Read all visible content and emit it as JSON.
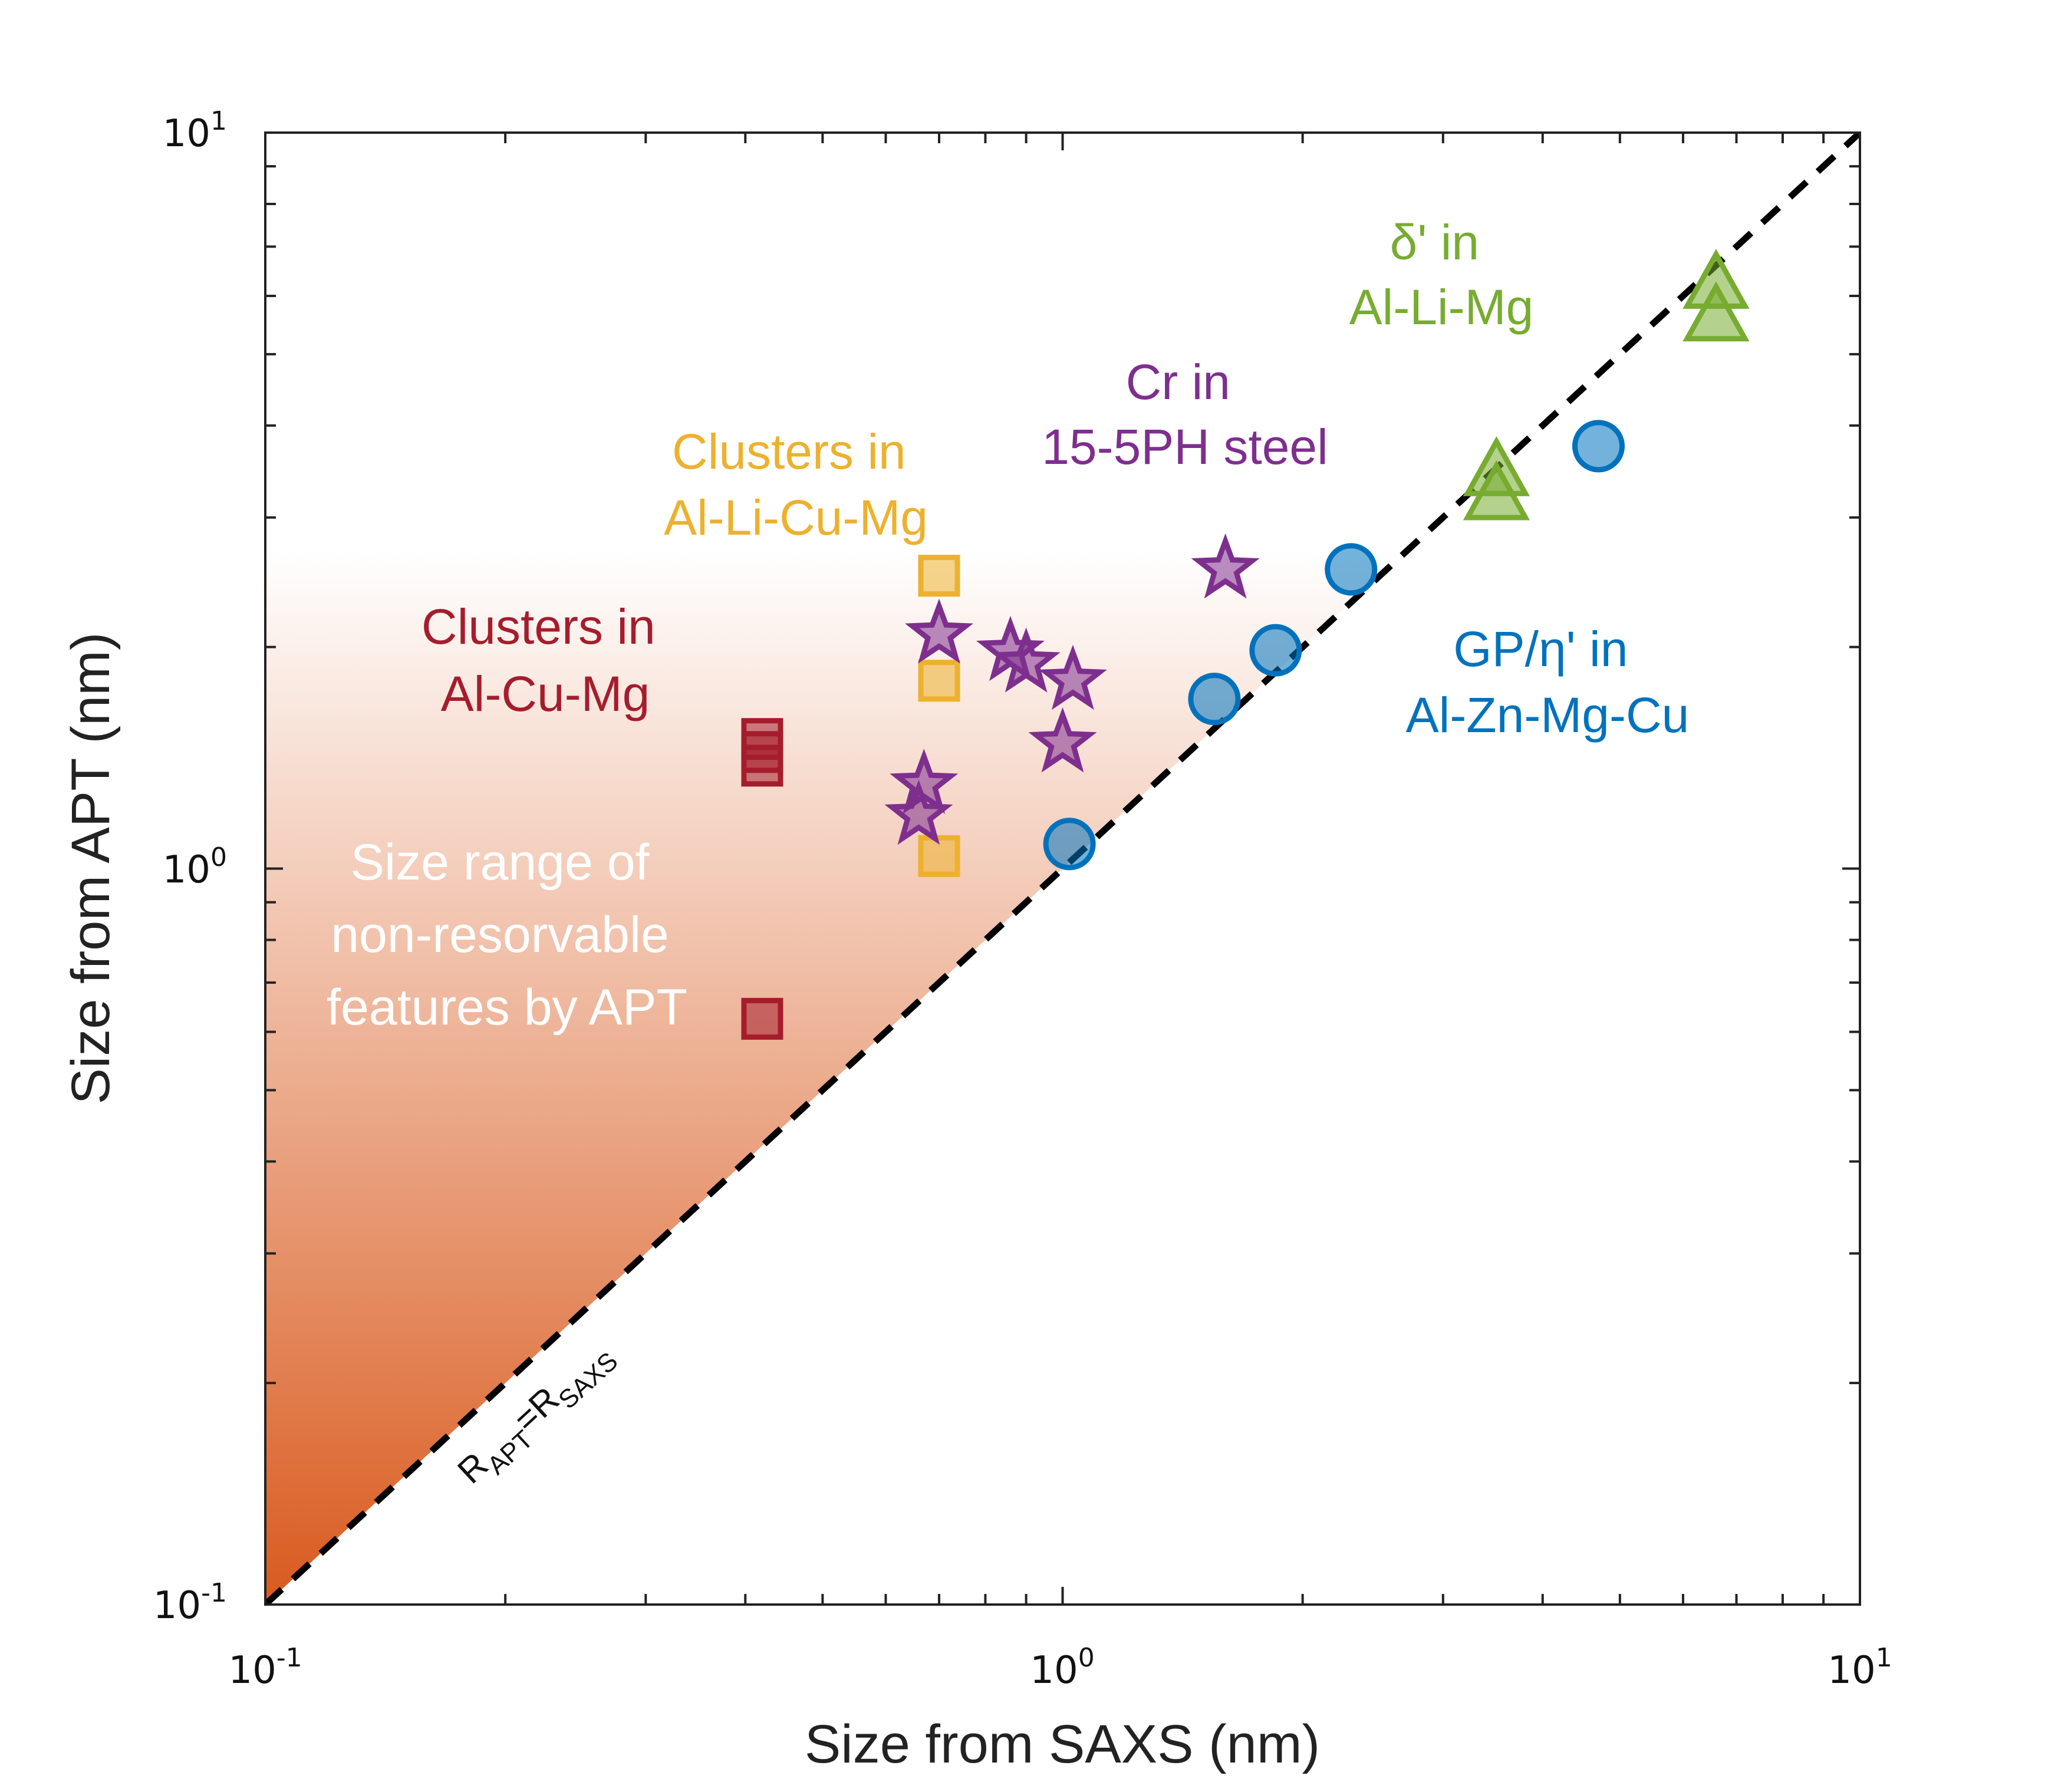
{
  "chart_data": {
    "type": "scatter",
    "xscale": "log",
    "yscale": "log",
    "xlim": [
      0.1,
      10
    ],
    "ylim": [
      0.1,
      10
    ],
    "xlabel": "Size from SAXS (nm)",
    "ylabel": "Size from APT (nm)",
    "x_ticks": [
      {
        "base": "10",
        "exp": "-1"
      },
      {
        "base": "10",
        "exp": "0"
      },
      {
        "base": "10",
        "exp": "1"
      }
    ],
    "y_ticks": [
      {
        "base": "10",
        "exp": "-1"
      },
      {
        "base": "10",
        "exp": "0"
      },
      {
        "base": "10",
        "exp": "1"
      }
    ],
    "reference_line": {
      "label_main_1": "R",
      "label_sub_1": "APT",
      "label_mid": "=R",
      "label_sub_2": "SAXS"
    },
    "shaded_region": {
      "text": [
        "Size range of",
        "non-resorvable",
        "features by APT"
      ],
      "color_bottom": "#d95a1e",
      "color_top": "#ffffff",
      "y_top": 2.7
    },
    "series": [
      {
        "name": "Clusters in Al-Cu-Mg",
        "label_lines": [
          "Clusters in",
          "Al-Cu-Mg"
        ],
        "marker": "square",
        "color": "#a51d2d",
        "points": [
          [
            0.42,
            1.38
          ],
          [
            0.42,
            1.44
          ],
          [
            0.42,
            1.5
          ],
          [
            0.42,
            0.625
          ]
        ]
      },
      {
        "name": "Clusters in Al-Li-Cu-Mg",
        "label_lines": [
          "Clusters in",
          "Al-Li-Cu-Mg"
        ],
        "marker": "square",
        "color": "#edb12e",
        "points": [
          [
            0.7,
            2.5
          ],
          [
            0.7,
            1.8
          ],
          [
            0.7,
            1.04
          ]
        ]
      },
      {
        "name": "Cr in 15-5PH steel",
        "label_lines": [
          "Cr in",
          "15-5PH steel"
        ],
        "marker": "star",
        "color": "#7e2f8e",
        "points": [
          [
            0.7,
            2.08
          ],
          [
            0.86,
            1.97
          ],
          [
            0.9,
            1.9
          ],
          [
            1.03,
            1.8
          ],
          [
            1.0,
            1.48
          ],
          [
            0.67,
            1.3
          ],
          [
            0.66,
            1.18
          ],
          [
            1.6,
            2.55
          ]
        ]
      },
      {
        "name": "GP/η' in Al-Zn-Mg-Cu",
        "label_lines": [
          "GP/η' in",
          "Al-Zn-Mg-Cu"
        ],
        "marker": "circle",
        "color": "#0072bd",
        "points": [
          [
            1.02,
            1.08
          ],
          [
            1.55,
            1.7
          ],
          [
            1.85,
            1.98
          ],
          [
            2.3,
            2.55
          ],
          [
            4.7,
            3.75
          ]
        ]
      },
      {
        "name": "δ' in Al-Li-Mg",
        "label_lines": [
          "δ' in",
          "Al-Li-Mg"
        ],
        "marker": "triangle",
        "color": "#77ac30",
        "points": [
          [
            3.5,
            3.2
          ],
          [
            3.5,
            3.45
          ],
          [
            6.6,
            5.6
          ],
          [
            6.6,
            6.2
          ]
        ]
      }
    ]
  }
}
